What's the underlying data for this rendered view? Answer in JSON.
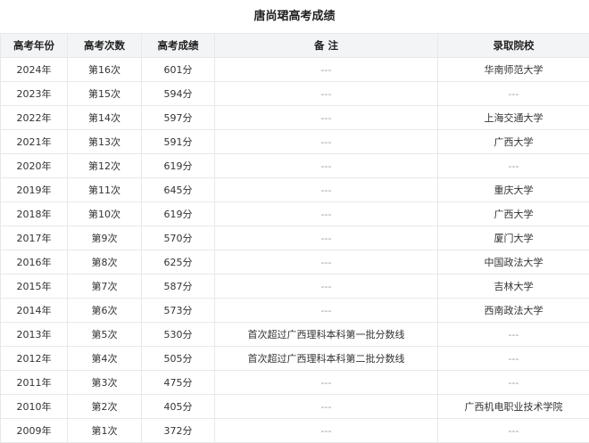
{
  "title": "唐尚珺高考成绩",
  "headers": [
    "高考年份",
    "高考次数",
    "高考成绩",
    "备 注",
    "录取院校"
  ],
  "rows": [
    [
      "2024年",
      "第16次",
      "601分",
      "---",
      "华南师范大学"
    ],
    [
      "2023年",
      "第15次",
      "594分",
      "---",
      "---"
    ],
    [
      "2022年",
      "第14次",
      "597分",
      "---",
      "上海交通大学"
    ],
    [
      "2021年",
      "第13次",
      "591分",
      "---",
      "广西大学"
    ],
    [
      "2020年",
      "第12次",
      "619分",
      "---",
      "---"
    ],
    [
      "2019年",
      "第11次",
      "645分",
      "---",
      "重庆大学"
    ],
    [
      "2018年",
      "第10次",
      "619分",
      "---",
      "广西大学"
    ],
    [
      "2017年",
      "第9次",
      "570分",
      "---",
      "厦门大学"
    ],
    [
      "2016年",
      "第8次",
      "625分",
      "---",
      "中国政法大学"
    ],
    [
      "2015年",
      "第7次",
      "587分",
      "---",
      "吉林大学"
    ],
    [
      "2014年",
      "第6次",
      "573分",
      "---",
      "西南政法大学"
    ],
    [
      "2013年",
      "第5次",
      "530分",
      "首次超过广西理科本科第一批分数线",
      "---"
    ],
    [
      "2012年",
      "第4次",
      "505分",
      "首次超过广西理科本科第二批分数线",
      "---"
    ],
    [
      "2011年",
      "第3次",
      "475分",
      "---",
      "---"
    ],
    [
      "2010年",
      "第2次",
      "405分",
      "---",
      "广西机电职业技术学院"
    ],
    [
      "2009年",
      "第1次",
      "372分",
      "---",
      "---"
    ]
  ]
}
